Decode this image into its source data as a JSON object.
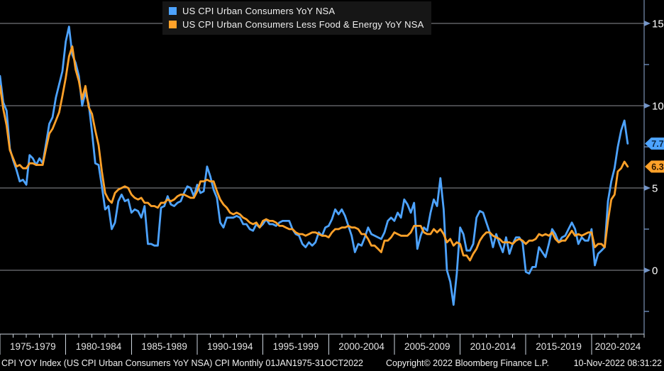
{
  "colors": {
    "background": "#000000",
    "headline_line": "#4da3ff",
    "core_line": "#ffa129",
    "grid": "#8e9196",
    "axis_right": "#93aed6",
    "axis_bottom": "#cdd5de",
    "tick_arrow": "#7596c8",
    "axis_label_text": "#ffffff",
    "x_label_text": "#e4e4e4"
  },
  "legend": {
    "items": [
      {
        "label": "US CPI Urban Consumers YoY NSA",
        "color": "#4da3ff"
      },
      {
        "label": "US CPI Urban Consumers Less Food & Energy YoY NSA",
        "color": "#ffa129"
      }
    ]
  },
  "y_axis": {
    "major_ticks": [
      {
        "value": 15,
        "label": "15"
      },
      {
        "value": 10,
        "label": "10"
      },
      {
        "value": 5,
        "label": "5"
      },
      {
        "value": 0,
        "label": "0"
      }
    ],
    "minor_tick_values": [
      12.5,
      7.5,
      2.5,
      -2.5
    ],
    "range": [
      -3.9,
      16.4
    ]
  },
  "x_axis": {
    "labels": [
      "1975-1979",
      "1980-1984",
      "1985-1989",
      "1990-1994",
      "1995-1999",
      "2000-2004",
      "2005-2009",
      "2010-2014",
      "2015-2019",
      "2020-2024"
    ],
    "start_year": 1975,
    "end_year": 2024,
    "minor_step_years": 1,
    "major_step_years": 5
  },
  "last_values": [
    {
      "series": "US CPI Urban Consumers YoY NSA",
      "label": "7.7",
      "value": 7.7,
      "color": "#4da3ff",
      "text_color": "#0b2947"
    },
    {
      "series": "US CPI Urban Consumers Less Food & Energy YoY NSA",
      "label": "6.3",
      "value": 6.3,
      "color": "#ffa129",
      "text_color": "#2b1600"
    }
  ],
  "status_bar": {
    "left": "CPI YOY Index (US CPI Urban Consumers YoY NSA) CPI  Monthly 01JAN1975-31OCT2022",
    "copyright": "Copyright© 2022 Bloomberg Finance L.P.",
    "timestamp": "10-Nov-2022 08:31:22"
  },
  "chart_data": {
    "type": "line",
    "x_unit": "decimal_year_quarterly",
    "x_start": 1975.0,
    "x_step": 0.25,
    "x_range": [
      1975.0,
      2024.0
    ],
    "ylim": [
      -3.9,
      16.4
    ],
    "grid": "horizontal-major-only",
    "legend_position": "top-left",
    "series": [
      {
        "name": "US CPI Urban Consumers YoY NSA",
        "color": "#4da3ff",
        "values": [
          11.8,
          10.2,
          9.7,
          7.4,
          6.7,
          6.1,
          5.4,
          5.5,
          5.2,
          7.0,
          6.8,
          6.4,
          6.8,
          6.5,
          7.7,
          8.9,
          9.3,
          10.5,
          11.3,
          12.1,
          13.9,
          14.8,
          13.1,
          12.6,
          11.8,
          10.0,
          10.8,
          10.1,
          8.4,
          6.5,
          6.4,
          5.1,
          3.7,
          3.9,
          2.5,
          2.9,
          4.2,
          4.6,
          4.2,
          4.3,
          3.5,
          3.7,
          3.6,
          3.2,
          3.9,
          1.6,
          1.6,
          1.5,
          1.5,
          3.8,
          3.9,
          4.5,
          4.0,
          3.9,
          4.1,
          4.2,
          4.7,
          5.1,
          5.0,
          4.5,
          5.2,
          4.7,
          4.8,
          6.3,
          5.7,
          4.9,
          4.4,
          2.9,
          2.6,
          3.2,
          3.2,
          3.2,
          3.3,
          3.2,
          2.8,
          2.8,
          2.5,
          2.4,
          2.8,
          2.6,
          2.8,
          3.1,
          2.8,
          2.8,
          2.7,
          2.9,
          3.0,
          3.0,
          3.0,
          2.5,
          2.2,
          2.1,
          1.6,
          1.4,
          1.7,
          1.5,
          1.7,
          2.3,
          2.1,
          2.6,
          2.7,
          3.1,
          3.7,
          3.4,
          3.7,
          3.3,
          2.7,
          2.1,
          1.1,
          1.6,
          1.5,
          2.0,
          2.6,
          2.2,
          2.1,
          2.0,
          1.9,
          2.3,
          3.0,
          3.2,
          3.0,
          3.5,
          3.2,
          4.3,
          4.0,
          3.5,
          4.1,
          1.3,
          2.1,
          2.6,
          2.4,
          3.5,
          4.3,
          3.9,
          5.6,
          3.7,
          0.0,
          -0.7,
          -2.1,
          -0.2,
          2.6,
          2.2,
          1.2,
          1.2,
          1.6,
          3.2,
          3.6,
          3.5,
          2.9,
          2.3,
          1.4,
          2.2,
          1.6,
          1.1,
          2.0,
          1.0,
          1.6,
          2.0,
          2.0,
          1.7,
          -0.1,
          -0.2,
          0.2,
          0.2,
          1.4,
          1.1,
          0.8,
          1.6,
          2.5,
          2.2,
          1.7,
          2.0,
          2.1,
          2.5,
          2.9,
          2.5,
          1.6,
          2.0,
          1.8,
          1.8,
          2.5,
          0.3,
          1.0,
          1.2,
          1.4,
          4.2,
          5.4,
          6.2,
          7.5,
          8.5,
          9.1,
          7.7
        ]
      },
      {
        "name": "US CPI Urban Consumers Less Food & Energy YoY NSA",
        "color": "#ffa129",
        "values": [
          11.2,
          9.8,
          8.8,
          7.3,
          6.8,
          6.3,
          6.4,
          6.2,
          6.2,
          6.5,
          6.5,
          6.4,
          6.4,
          6.4,
          7.4,
          8.3,
          8.6,
          9.1,
          9.6,
          10.6,
          11.7,
          13.0,
          13.6,
          12.2,
          11.5,
          10.4,
          11.2,
          9.9,
          9.5,
          8.5,
          7.6,
          6.0,
          4.7,
          4.3,
          4.1,
          4.7,
          4.9,
          5.0,
          5.1,
          5.0,
          4.6,
          4.4,
          4.3,
          4.4,
          4.1,
          4.1,
          3.9,
          3.9,
          3.8,
          4.1,
          4.1,
          4.3,
          4.2,
          4.3,
          4.5,
          4.6,
          4.6,
          4.5,
          4.4,
          4.4,
          4.8,
          5.4,
          5.4,
          5.5,
          5.4,
          5.4,
          4.8,
          4.3,
          4.0,
          3.8,
          3.5,
          3.4,
          3.5,
          3.4,
          3.2,
          3.1,
          2.9,
          2.8,
          2.9,
          2.6,
          3.0,
          3.1,
          3.0,
          3.0,
          2.9,
          2.7,
          2.7,
          2.6,
          2.5,
          2.5,
          2.3,
          2.2,
          2.2,
          2.1,
          2.2,
          2.3,
          2.3,
          2.2,
          2.1,
          2.1,
          2.0,
          2.3,
          2.5,
          2.5,
          2.6,
          2.6,
          2.7,
          2.6,
          2.6,
          2.5,
          2.2,
          2.2,
          1.9,
          1.5,
          1.5,
          1.3,
          1.1,
          1.8,
          1.8,
          2.0,
          2.3,
          2.2,
          2.1,
          2.1,
          2.1,
          2.3,
          2.7,
          2.7,
          2.7,
          2.3,
          2.2,
          2.2,
          2.5,
          2.3,
          2.5,
          2.2,
          1.7,
          1.9,
          1.5,
          1.7,
          1.6,
          0.9,
          0.9,
          0.6,
          1.0,
          1.3,
          1.8,
          2.1,
          2.3,
          2.3,
          2.1,
          2.0,
          1.9,
          1.7,
          1.7,
          1.7,
          1.6,
          1.8,
          1.9,
          1.8,
          1.6,
          1.8,
          1.8,
          1.9,
          2.2,
          2.1,
          2.2,
          2.1,
          2.3,
          1.9,
          1.7,
          1.8,
          1.8,
          2.1,
          2.4,
          2.1,
          2.2,
          2.1,
          2.2,
          2.3,
          2.3,
          1.4,
          1.6,
          1.6,
          1.4,
          3.0,
          4.3,
          4.6,
          6.0,
          6.2,
          6.6,
          6.3
        ]
      }
    ]
  }
}
